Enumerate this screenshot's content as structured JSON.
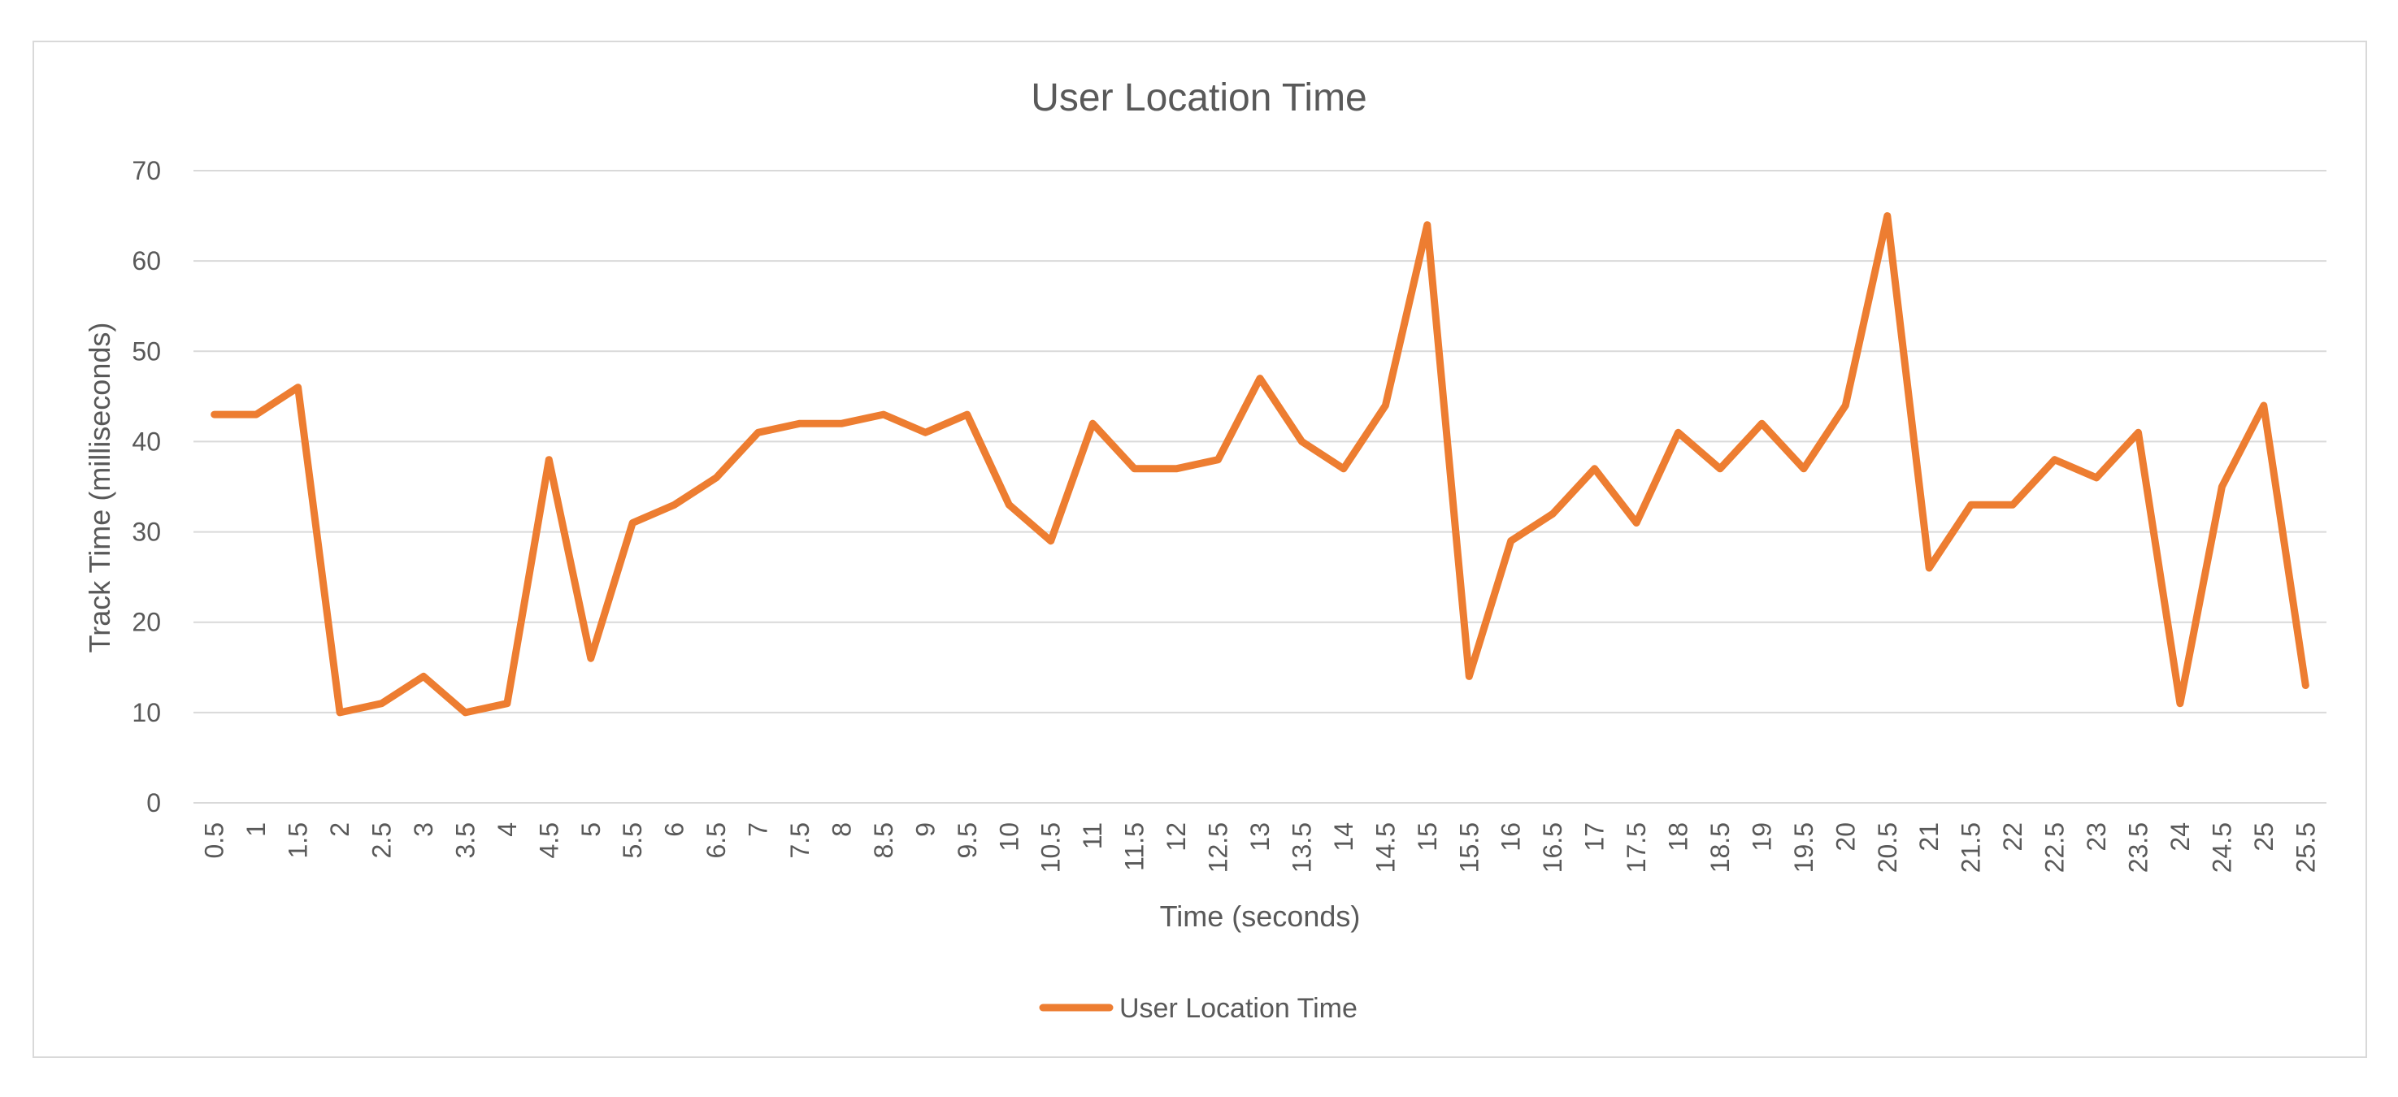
{
  "chart_data": {
    "type": "line",
    "title": "User Location Time",
    "xlabel": "Time (seconds)",
    "ylabel": "Track Time (milliseconds)",
    "ylim": [
      0,
      70
    ],
    "yticks": [
      "0",
      "10",
      "20",
      "30",
      "40",
      "50",
      "60",
      "70"
    ],
    "grid": "horizontal",
    "legend_position": "bottom",
    "categories": [
      "0.5",
      "1",
      "1.5",
      "2",
      "2.5",
      "3",
      "3.5",
      "4",
      "4.5",
      "5",
      "5.5",
      "6",
      "6.5",
      "7",
      "7.5",
      "8",
      "8.5",
      "9",
      "9.5",
      "10",
      "10.5",
      "11",
      "11.5",
      "12",
      "12.5",
      "13",
      "13.5",
      "14",
      "14.5",
      "15",
      "15.5",
      "16",
      "16.5",
      "17",
      "17.5",
      "18",
      "18.5",
      "19",
      "19.5",
      "20",
      "20.5",
      "21",
      "21.5",
      "22",
      "22.5",
      "23",
      "23.5",
      "24",
      "24.5",
      "25",
      "25.5"
    ],
    "series": [
      {
        "name": "User Location Time",
        "color": "#ED7D31",
        "values": [
          43,
          43,
          46,
          10,
          11,
          14,
          10,
          11,
          38,
          16,
          31,
          33,
          36,
          41,
          42,
          42,
          43,
          41,
          43,
          33,
          29,
          42,
          37,
          37,
          38,
          47,
          40,
          37,
          44,
          64,
          14,
          29,
          32,
          37,
          31,
          41,
          37,
          42,
          37,
          44,
          65,
          26,
          33,
          33,
          38,
          36,
          41,
          11,
          35,
          44,
          13
        ]
      }
    ]
  }
}
